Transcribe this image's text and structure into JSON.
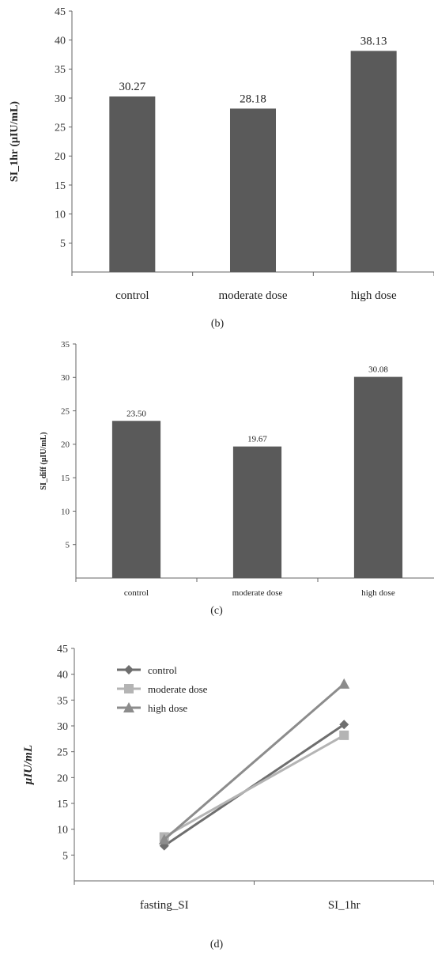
{
  "chart_data": [
    {
      "id": "b",
      "type": "bar",
      "caption": "(b)",
      "ylabel": "SI_1hr  (μIU/mL)",
      "categories": [
        "control",
        "moderate dose",
        "high dose"
      ],
      "values": [
        30.27,
        28.18,
        38.13
      ],
      "data_labels": [
        "30.27",
        "28.18",
        "38.13"
      ],
      "ylim": [
        0,
        45
      ],
      "yticks": [
        5,
        10,
        15,
        20,
        25,
        30,
        35,
        40,
        45
      ],
      "bar_color": "#5a5a5a",
      "grid": false
    },
    {
      "id": "c",
      "type": "bar",
      "caption": "(c)",
      "ylabel": "SI_diff  (μIU/mL)",
      "categories": [
        "control",
        "moderate dose",
        "high dose"
      ],
      "values": [
        23.5,
        19.67,
        30.08
      ],
      "data_labels": [
        "23.50",
        "19.67",
        "30.08"
      ],
      "ylim": [
        0,
        35
      ],
      "yticks": [
        5,
        10,
        15,
        20,
        25,
        30,
        35
      ],
      "bar_color": "#5a5a5a",
      "grid": false
    },
    {
      "id": "d",
      "type": "line",
      "caption": "(d)",
      "ylabel": "μIU/mL",
      "x": [
        "fasting_SI",
        "SI_1hr"
      ],
      "ylim": [
        0,
        45
      ],
      "yticks": [
        5,
        10,
        15,
        20,
        25,
        30,
        35,
        40,
        45
      ],
      "legend_position": "top-left",
      "grid": false,
      "series": [
        {
          "name": "control",
          "values": [
            6.8,
            30.27
          ],
          "color": "#6e6e6e",
          "marker": "diamond"
        },
        {
          "name": "moderate dose",
          "values": [
            8.5,
            28.18
          ],
          "color": "#b4b4b4",
          "marker": "square"
        },
        {
          "name": "high dose",
          "values": [
            8.0,
            38.13
          ],
          "color": "#8c8c8c",
          "marker": "triangle"
        }
      ]
    }
  ]
}
